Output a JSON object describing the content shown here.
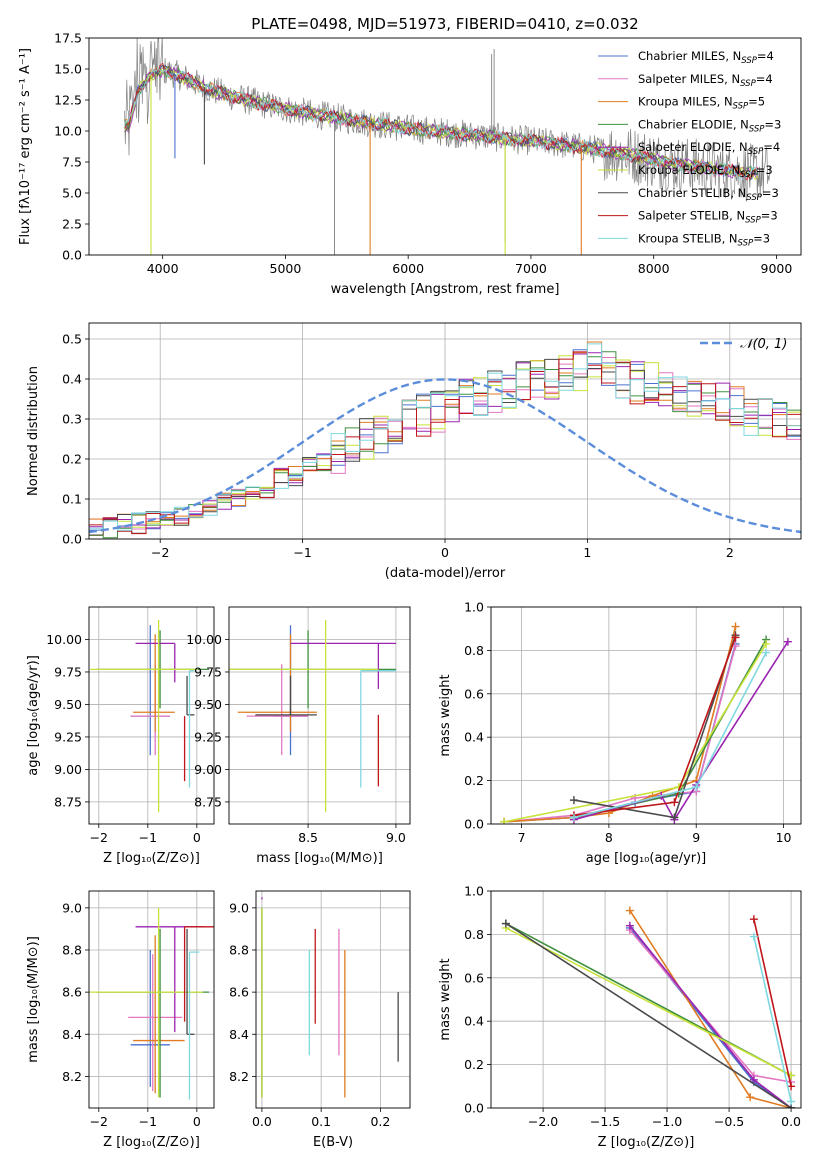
{
  "figure": {
    "title": "PLATE=0498, MJD=51973, FIBERID=0410, z=0.032"
  },
  "models": [
    {
      "name": "Chabrier MILES",
      "nssp": "4",
      "color": "#4c72d0"
    },
    {
      "name": "Salpeter MILES",
      "nssp": "4",
      "color": "#e377c2"
    },
    {
      "name": "Kroupa MILES",
      "nssp": "5",
      "color": "#e07b22"
    },
    {
      "name": "Chabrier ELODIE",
      "nssp": "3",
      "color": "#3f8f3f"
    },
    {
      "name": "Salpeter ELODIE",
      "nssp": "4",
      "color": "#9a24b0"
    },
    {
      "name": "Kroupa ELODIE",
      "nssp": "3",
      "color": "#c8e23a"
    },
    {
      "name": "Chabrier STELIB",
      "nssp": "3",
      "color": "#4a4a4a"
    },
    {
      "name": "Salpeter STELIB",
      "nssp": "3",
      "color": "#c0161b"
    },
    {
      "name": "Kroupa STELIB",
      "nssp": "3",
      "color": "#7fd8e0"
    }
  ],
  "legend_prefix": "N",
  "legend_sub": "SSP",
  "chart_data": [
    {
      "id": "spectrum",
      "type": "line",
      "title": "PLATE=0498, MJD=51973, FIBERID=0410, z=0.032",
      "xlabel": "wavelength [Angstrom, rest frame]",
      "ylabel": "Flux [fλ10⁻¹⁷ erg cm⁻² s⁻¹ A⁻¹]",
      "xlim": [
        3400,
        9200
      ],
      "ylim": [
        0,
        17.5
      ],
      "xticks": [
        4000,
        5000,
        6000,
        7000,
        8000,
        9000
      ],
      "yticks": [
        0.0,
        2.5,
        5.0,
        7.5,
        10.0,
        12.5,
        15.0,
        17.5
      ],
      "grid": false,
      "legend": "top-right",
      "continuum_x": [
        3680,
        3720,
        3800,
        3900,
        4000,
        4100,
        4200,
        4300,
        4400,
        4500,
        4600,
        4800,
        5000,
        5200,
        5400,
        5600,
        5800,
        6000,
        6200,
        6400,
        6600,
        6800,
        7000,
        7200,
        7400,
        7600,
        7800,
        8000,
        8200,
        8400,
        8600,
        8800
      ],
      "continuum_y": [
        10.5,
        10.3,
        13.2,
        14.5,
        14.9,
        14.6,
        14.2,
        13.7,
        13.3,
        13.0,
        12.7,
        12.2,
        11.8,
        11.4,
        11.1,
        10.8,
        10.5,
        10.2,
        10.0,
        9.8,
        9.6,
        9.4,
        9.2,
        9.0,
        8.7,
        8.4,
        8.1,
        7.7,
        7.3,
        7.0,
        6.8,
        6.6
      ],
      "dips": [
        {
          "x": 3905,
          "y": 0
        },
        {
          "x": 4100,
          "y": 7.8
        },
        {
          "x": 4340,
          "y": 7.3
        },
        {
          "x": 5690,
          "y": 0
        },
        {
          "x": 6790,
          "y": 0
        },
        {
          "x": 7410,
          "y": 0
        }
      ]
    },
    {
      "id": "residuals",
      "type": "histogram",
      "xlabel": "(data-model)/error",
      "ylabel": "Normed distribution",
      "xlim": [
        -2.5,
        2.5
      ],
      "ylim": [
        0,
        0.54
      ],
      "xticks": [
        -2,
        -1,
        0,
        1,
        2
      ],
      "yticks": [
        0.0,
        0.1,
        0.2,
        0.3,
        0.4,
        0.5
      ],
      "grid": true,
      "legend": "top-right",
      "gauss_label": "𝒩(0, 1)",
      "bin_width": 0.1,
      "series_base": [
        0.03,
        0.03,
        0.04,
        0.04,
        0.05,
        0.05,
        0.06,
        0.07,
        0.08,
        0.09,
        0.1,
        0.12,
        0.13,
        0.15,
        0.16,
        0.18,
        0.19,
        0.21,
        0.23,
        0.25,
        0.26,
        0.28,
        0.3,
        0.31,
        0.32,
        0.34,
        0.35,
        0.36,
        0.37,
        0.38,
        0.39,
        0.4,
        0.4,
        0.41,
        0.42,
        0.44,
        0.42,
        0.4,
        0.39,
        0.39,
        0.38,
        0.37,
        0.36,
        0.35,
        0.34,
        0.33,
        0.31,
        0.3,
        0.29,
        0.27,
        0.25,
        0.24,
        0.22,
        0.2,
        0.18,
        0.16,
        0.14,
        0.13,
        0.11,
        0.1,
        0.09,
        0.08,
        0.07,
        0.06,
        0.05,
        0.05,
        0.04,
        0.04,
        0.03,
        0.03
      ]
    },
    {
      "id": "age_vs_Z",
      "type": "scatter",
      "xlabel": "Z [log₁₀(Z/Z⊙)]",
      "ylabel": "age  [log₁₀(age/yr)]",
      "xlim": [
        -2.2,
        0.35
      ],
      "ylim": [
        8.58,
        10.25
      ],
      "xticks": [
        -2,
        -1,
        0
      ],
      "yticks": [
        8.75,
        9.0,
        9.25,
        9.5,
        9.75,
        10.0
      ],
      "grid": true,
      "points": [
        {
          "m": 0,
          "x": -0.95,
          "y": 9.41,
          "xe": [
            0.4,
            0.4
          ],
          "ye": [
            0.3,
            0.7
          ]
        },
        {
          "m": 1,
          "x": -0.85,
          "y": 9.41,
          "xe": [
            0.5,
            0.3
          ],
          "ye": [
            0.3,
            0.4
          ]
        },
        {
          "m": 2,
          "x": -0.85,
          "y": 9.44,
          "xe": [
            0.45,
            0.4
          ],
          "ye": [
            0.15,
            0.6
          ]
        },
        {
          "m": 3,
          "x": -0.75,
          "y": 9.77,
          "xe": [
            1.3,
            1.0
          ],
          "ye": [
            0.3,
            0.3
          ]
        },
        {
          "m": 4,
          "x": -0.45,
          "y": 9.97,
          "xe": [
            0.8,
            0.0
          ],
          "ye": [
            0.3,
            0.0
          ]
        },
        {
          "m": 5,
          "x": -0.78,
          "y": 9.77,
          "xe": [
            1.4,
            0.8
          ],
          "ye": [
            1.1,
            0.38
          ]
        },
        {
          "m": 6,
          "x": -0.2,
          "y": 9.42,
          "xe": [
            0.0,
            0.15
          ],
          "ye": [
            0.0,
            0.3
          ]
        },
        {
          "m": 7,
          "x": -0.25,
          "y": 9.41,
          "xe": [
            0.0,
            0.0
          ],
          "ye": [
            0.5,
            0.0
          ]
        },
        {
          "m": 8,
          "x": -0.15,
          "y": 9.76,
          "xe": [
            0.0,
            0.1
          ],
          "ye": [
            0.9,
            0.0
          ]
        }
      ]
    },
    {
      "id": "age_vs_mass",
      "type": "scatter",
      "xlabel": "mass [log₁₀(M/M⊙)]",
      "ylabel": "",
      "xlim": [
        8.05,
        9.08
      ],
      "ylim": [
        8.58,
        10.25
      ],
      "xticks": [
        8.5,
        9.0
      ],
      "yticks": [
        8.75,
        9.0,
        9.25,
        9.5,
        9.75,
        10.0
      ],
      "grid": true,
      "points": [
        {
          "m": 0,
          "x": 8.4,
          "y": 9.41,
          "xe": [
            0.1,
            0.1
          ],
          "ye": [
            0.3,
            0.7
          ]
        },
        {
          "m": 1,
          "x": 8.35,
          "y": 9.41,
          "xe": [
            0.2,
            0.15
          ],
          "ye": [
            0.3,
            0.4
          ]
        },
        {
          "m": 2,
          "x": 8.4,
          "y": 9.44,
          "xe": [
            0.3,
            0.15
          ],
          "ye": [
            0.15,
            0.6
          ]
        },
        {
          "m": 3,
          "x": 8.5,
          "y": 9.77,
          "xe": [
            0.45,
            0.5
          ],
          "ye": [
            0.3,
            0.3
          ]
        },
        {
          "m": 4,
          "x": 8.9,
          "y": 9.97,
          "xe": [
            0.5,
            0.1
          ],
          "ye": [
            0.35,
            0.0
          ]
        },
        {
          "m": 5,
          "x": 8.6,
          "y": 9.77,
          "xe": [
            0.55,
            0.3
          ],
          "ye": [
            1.1,
            0.38
          ]
        },
        {
          "m": 6,
          "x": 8.4,
          "y": 9.42,
          "xe": [
            0.2,
            0.15
          ],
          "ye": [
            0.0,
            0.3
          ]
        },
        {
          "m": 7,
          "x": 8.9,
          "y": 9.42,
          "xe": [
            0.0,
            0.0
          ],
          "ye": [
            0.55,
            0.0
          ]
        },
        {
          "m": 8,
          "x": 8.8,
          "y": 9.76,
          "xe": [
            0.0,
            0.2
          ],
          "ye": [
            0.9,
            0.0
          ]
        }
      ]
    },
    {
      "id": "weight_vs_age",
      "type": "line",
      "xlabel": "age  [log₁₀(age/yr)]",
      "ylabel": "mass weight",
      "xlim": [
        6.65,
        10.2
      ],
      "ylim": [
        0,
        1
      ],
      "xticks": [
        7,
        8,
        9,
        10
      ],
      "yticks": [
        0.0,
        0.2,
        0.4,
        0.6,
        0.8,
        1.0
      ],
      "grid": true,
      "series": [
        {
          "m": 0,
          "x": [
            6.8,
            7.6,
            8.3,
            9.0,
            9.45
          ],
          "y": [
            0.01,
            0.03,
            0.1,
            0.15,
            0.83
          ]
        },
        {
          "m": 1,
          "x": [
            6.8,
            7.6,
            8.3,
            9.0,
            9.45
          ],
          "y": [
            0.01,
            0.04,
            0.12,
            0.15,
            0.82
          ]
        },
        {
          "m": 2,
          "x": [
            6.8,
            7.6,
            8.0,
            8.5,
            9.0,
            9.45
          ],
          "y": [
            0.01,
            0.03,
            0.05,
            0.13,
            0.2,
            0.91
          ]
        },
        {
          "m": 3,
          "x": [
            7.6,
            8.8,
            9.8
          ],
          "y": [
            0.03,
            0.14,
            0.85
          ]
        },
        {
          "m": 4,
          "x": [
            7.6,
            8.6,
            8.75,
            9.0,
            10.05
          ],
          "y": [
            0.02,
            0.13,
            0.02,
            0.18,
            0.84
          ]
        },
        {
          "m": 5,
          "x": [
            6.8,
            8.8,
            9.8
          ],
          "y": [
            0.01,
            0.17,
            0.83
          ]
        },
        {
          "m": 6,
          "x": [
            7.6,
            8.75,
            9.45
          ],
          "y": [
            0.11,
            0.03,
            0.87
          ]
        },
        {
          "m": 7,
          "x": [
            7.6,
            8.75,
            9.45
          ],
          "y": [
            0.04,
            0.1,
            0.86
          ]
        },
        {
          "m": 8,
          "x": [
            7.6,
            9.0,
            9.8
          ],
          "y": [
            0.03,
            0.17,
            0.79
          ]
        }
      ]
    },
    {
      "id": "mass_vs_Z",
      "type": "scatter",
      "xlabel": "Z [log₁₀(Z/Z⊙)]",
      "ylabel": "mass [log₁₀(M/M⊙)]",
      "xlim": [
        -2.2,
        0.35
      ],
      "ylim": [
        8.05,
        9.08
      ],
      "xticks": [
        -2,
        -1,
        0
      ],
      "yticks": [
        8.2,
        8.4,
        8.6,
        8.8,
        9.0
      ],
      "grid": true,
      "points": [
        {
          "m": 0,
          "x": -0.95,
          "y": 8.35,
          "xe": [
            0.4,
            0.4
          ],
          "ye": [
            0.2,
            0.45
          ]
        },
        {
          "m": 1,
          "x": -0.9,
          "y": 8.48,
          "xe": [
            0.5,
            0.6
          ],
          "ye": [
            0.35,
            0.3
          ]
        },
        {
          "m": 2,
          "x": -0.85,
          "y": 8.37,
          "xe": [
            0.45,
            0.6
          ],
          "ye": [
            0.25,
            0.5
          ]
        },
        {
          "m": 3,
          "x": -0.75,
          "y": 8.6,
          "xe": [
            1.3,
            1.0
          ],
          "ye": [
            0.5,
            0.3
          ]
        },
        {
          "m": 4,
          "x": -0.45,
          "y": 8.91,
          "xe": [
            0.8,
            0.6
          ],
          "ye": [
            0.5,
            0.0
          ]
        },
        {
          "m": 5,
          "x": -0.78,
          "y": 8.6,
          "xe": [
            1.4,
            0.9
          ],
          "ye": [
            0.5,
            0.4
          ]
        },
        {
          "m": 6,
          "x": -0.2,
          "y": 8.4,
          "xe": [
            0.0,
            0.15
          ],
          "ye": [
            0.0,
            0.5
          ]
        },
        {
          "m": 7,
          "x": -0.25,
          "y": 8.91,
          "xe": [
            0.0,
            0.6
          ],
          "ye": [
            0.45,
            0.0
          ]
        },
        {
          "m": 8,
          "x": -0.15,
          "y": 8.79,
          "xe": [
            0.0,
            0.2
          ],
          "ye": [
            0.7,
            0.0
          ]
        }
      ]
    },
    {
      "id": "mass_vs_ebv",
      "type": "scatter",
      "xlabel": "E(B-V)",
      "ylabel": "",
      "xlim": [
        -0.01,
        0.25
      ],
      "ylim": [
        8.05,
        9.08
      ],
      "xticks": [
        0.0,
        0.1,
        0.2
      ],
      "yticks": [
        8.2,
        8.4,
        8.6,
        8.8,
        9.0
      ],
      "grid": true,
      "points": [
        {
          "m": 0,
          "x": 0.0,
          "y": 8.5,
          "xe": [
            0,
            0
          ],
          "ye": [
            0.4,
            0.5
          ]
        },
        {
          "m": 1,
          "x": 0.13,
          "y": 8.6,
          "xe": [
            0,
            0
          ],
          "ye": [
            0.3,
            0.3
          ]
        },
        {
          "m": 2,
          "x": 0.14,
          "y": 8.5,
          "xe": [
            0,
            0
          ],
          "ye": [
            0.4,
            0.3
          ]
        },
        {
          "m": 3,
          "x": 0.0,
          "y": 8.8,
          "xe": [
            0,
            0
          ],
          "ye": [
            0.7,
            0.2
          ]
        },
        {
          "m": 4,
          "x": 0.0,
          "y": 9.04,
          "xe": [
            0,
            0
          ],
          "ye": [
            0.0,
            0.01
          ]
        },
        {
          "m": 5,
          "x": 0.0,
          "y": 8.6,
          "xe": [
            0,
            0
          ],
          "ye": [
            0.5,
            0.4
          ]
        },
        {
          "m": 6,
          "x": 0.23,
          "y": 8.45,
          "xe": [
            0,
            0
          ],
          "ye": [
            0.18,
            0.15
          ]
        },
        {
          "m": 7,
          "x": 0.09,
          "y": 8.7,
          "xe": [
            0,
            0
          ],
          "ye": [
            0.25,
            0.2
          ]
        },
        {
          "m": 8,
          "x": 0.08,
          "y": 8.5,
          "xe": [
            0,
            0
          ],
          "ye": [
            0.2,
            0.3
          ]
        }
      ]
    },
    {
      "id": "weight_vs_Z",
      "type": "line",
      "xlabel": "Z [log₁₀(Z/Z⊙)]",
      "ylabel": "mass weight",
      "xlim": [
        -2.42,
        0.08
      ],
      "ylim": [
        0,
        1
      ],
      "xticks": [
        -2.0,
        -1.5,
        -1.0,
        -0.5,
        0.0
      ],
      "yticks": [
        0.0,
        0.2,
        0.4,
        0.6,
        0.8,
        1.0
      ],
      "grid": true,
      "series": [
        {
          "m": 0,
          "x": [
            -1.3,
            -0.3,
            0.0
          ],
          "y": [
            0.83,
            0.12,
            0.0
          ]
        },
        {
          "m": 1,
          "x": [
            -1.3,
            -0.3,
            0.0
          ],
          "y": [
            0.82,
            0.15,
            0.12
          ]
        },
        {
          "m": 2,
          "x": [
            -1.3,
            -0.33,
            0.0
          ],
          "y": [
            0.91,
            0.05,
            0.0
          ]
        },
        {
          "m": 3,
          "x": [
            -2.3,
            0.0
          ],
          "y": [
            0.85,
            0.15
          ]
        },
        {
          "m": 4,
          "x": [
            -1.3,
            -0.3,
            0.0
          ],
          "y": [
            0.84,
            0.13,
            0.0
          ]
        },
        {
          "m": 5,
          "x": [
            -2.3,
            0.0
          ],
          "y": [
            0.83,
            0.15
          ]
        },
        {
          "m": 6,
          "x": [
            -2.3,
            0.0
          ],
          "y": [
            0.85,
            0.0
          ]
        },
        {
          "m": 7,
          "x": [
            -0.3,
            0.0
          ],
          "y": [
            0.87,
            0.1
          ]
        },
        {
          "m": 8,
          "x": [
            -0.3,
            0.0
          ],
          "y": [
            0.79,
            0.03
          ]
        }
      ]
    }
  ]
}
